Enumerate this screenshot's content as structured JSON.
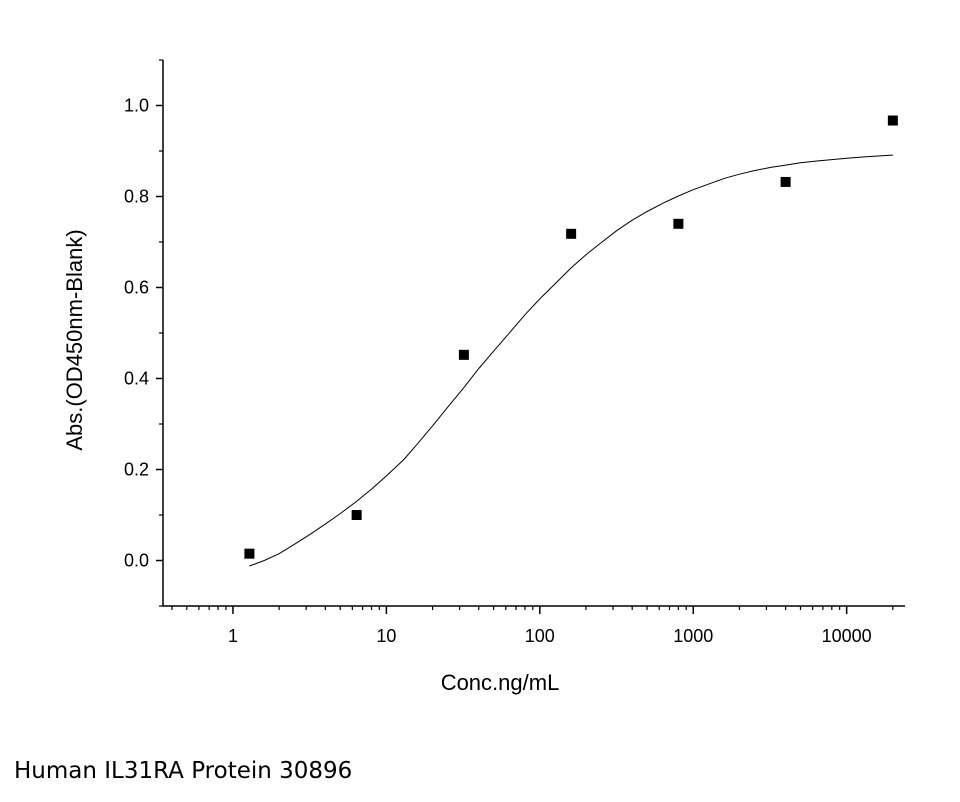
{
  "chart_data": {
    "type": "scatter",
    "xlabel": "Conc.ng/mL",
    "ylabel": "Abs.(OD450nm-Blank)",
    "xscale": "log",
    "xlim": [
      0.35,
      24000
    ],
    "ylim": [
      -0.1,
      1.1
    ],
    "x_ticks": [
      1,
      10,
      100,
      1000,
      10000
    ],
    "x_tick_labels": [
      "1",
      "10",
      "100",
      "1000",
      "10000"
    ],
    "y_ticks": [
      0.0,
      0.2,
      0.4,
      0.6,
      0.8,
      1.0
    ],
    "y_tick_labels": [
      "0.0",
      "0.2",
      "0.4",
      "0.6",
      "0.8",
      "1.0"
    ],
    "grid": false,
    "legend": "none",
    "series": [
      {
        "marker": "square",
        "color": "#000000",
        "x": [
          1.28,
          6.4,
          32,
          160,
          800,
          4000,
          20000
        ],
        "y": [
          0.015,
          0.1,
          0.452,
          0.718,
          0.74,
          0.832,
          0.967
        ]
      }
    ],
    "fit_curve": {
      "color": "#000000",
      "x": [
        1.28,
        1.6,
        2,
        2.5,
        3.2,
        4,
        5,
        6.4,
        8,
        10,
        13,
        16,
        20,
        25,
        32,
        40,
        50,
        64,
        80,
        100,
        130,
        160,
        200,
        250,
        320,
        400,
        500,
        640,
        800,
        1000,
        1300,
        1600,
        2000,
        2500,
        3200,
        4000,
        5000,
        6400,
        8000,
        10000,
        13000,
        16000,
        20000
      ],
      "y": [
        -0.012,
        0.0,
        0.015,
        0.035,
        0.058,
        0.08,
        0.103,
        0.13,
        0.157,
        0.186,
        0.222,
        0.257,
        0.296,
        0.336,
        0.38,
        0.422,
        0.46,
        0.502,
        0.54,
        0.575,
        0.613,
        0.643,
        0.672,
        0.698,
        0.726,
        0.748,
        0.767,
        0.786,
        0.801,
        0.815,
        0.829,
        0.84,
        0.849,
        0.857,
        0.864,
        0.869,
        0.874,
        0.878,
        0.881,
        0.884,
        0.887,
        0.889,
        0.891
      ]
    }
  },
  "caption": "Human IL31RA Protein 30896"
}
